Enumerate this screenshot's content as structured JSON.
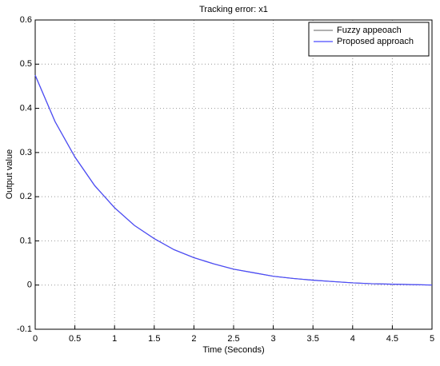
{
  "chart_data": {
    "type": "line",
    "title": "Tracking error: x1",
    "x_label": "Time (Seconds)",
    "y_label": "Output value",
    "x": [
      0,
      0.25,
      0.5,
      0.75,
      1,
      1.25,
      1.5,
      1.75,
      2,
      2.25,
      2.5,
      2.75,
      3,
      3.25,
      3.5,
      3.75,
      4,
      4.25,
      4.5,
      4.75,
      5
    ],
    "series": [
      {
        "name": "Fuzzy appeoach",
        "color": "#808080",
        "values": [
          0.475,
          0.37,
          0.29,
          0.225,
          0.175,
          0.135,
          0.105,
          0.08,
          0.062,
          0.048,
          0.036,
          0.028,
          0.02,
          0.015,
          0.011,
          0.008,
          0.005,
          0.003,
          0.002,
          0.001,
          0
        ]
      },
      {
        "name": "Proposed approach",
        "color": "#4a4aff",
        "values": [
          0.475,
          0.37,
          0.29,
          0.225,
          0.175,
          0.135,
          0.105,
          0.08,
          0.062,
          0.048,
          0.036,
          0.028,
          0.02,
          0.015,
          0.011,
          0.008,
          0.005,
          0.003,
          0.002,
          0.001,
          0
        ]
      }
    ],
    "xlim": [
      0,
      5
    ],
    "ylim": [
      -0.1,
      0.6
    ],
    "xticks": [
      0,
      0.5,
      1,
      1.5,
      2,
      2.5,
      3,
      3.5,
      4,
      4.5,
      5
    ],
    "yticks": [
      -0.1,
      0,
      0.1,
      0.2,
      0.3,
      0.4,
      0.5,
      0.6
    ],
    "grid": true,
    "legend": "top-right"
  }
}
